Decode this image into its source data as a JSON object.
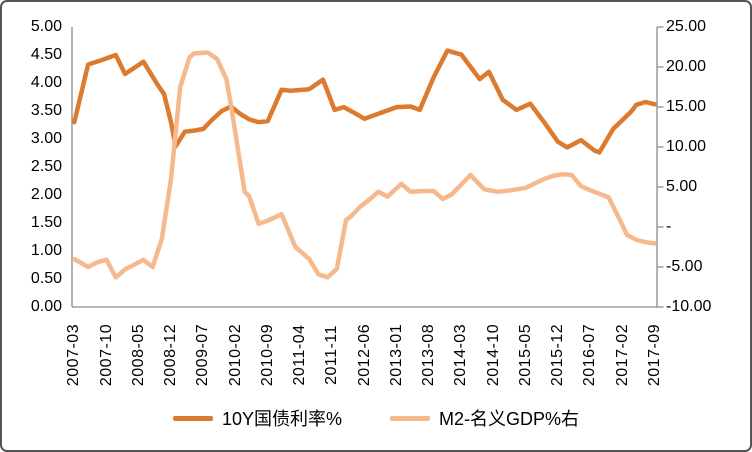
{
  "chart_data": {
    "type": "line",
    "title": "",
    "grid": false,
    "legend_position": "bottom",
    "x_axis": {
      "unit": "year-month",
      "start": "2007-03",
      "end": "2017-09",
      "label_every_n_months": 7,
      "categories": [
        "2007-03",
        "2007-10",
        "2008-05",
        "2008-12",
        "2009-07",
        "2010-02",
        "2010-09",
        "2011-04",
        "2011-11",
        "2012-06",
        "2013-01",
        "2013-08",
        "2014-03",
        "2014-10",
        "2015-05",
        "2015-12",
        "2016-07",
        "2017-02",
        "2017-09"
      ]
    },
    "left_axis": {
      "min": 0,
      "max": 5,
      "ticks": [
        {
          "label": "5.00",
          "value": 5
        },
        {
          "label": "4.50",
          "value": 4.5
        },
        {
          "label": "4.00",
          "value": 4
        },
        {
          "label": "3.50",
          "value": 3.5
        },
        {
          "label": "3.00",
          "value": 3
        },
        {
          "label": "2.50",
          "value": 2.5
        },
        {
          "label": "2.00",
          "value": 2
        },
        {
          "label": "1.50",
          "value": 1.5
        },
        {
          "label": "1.00",
          "value": 1
        },
        {
          "label": "0.50",
          "value": 0.5
        },
        {
          "label": "0.00",
          "value": 0
        }
      ]
    },
    "right_axis": {
      "min": -10,
      "max": 25,
      "ticks": [
        {
          "label": "25.00",
          "value": 25
        },
        {
          "label": "20.00",
          "value": 20
        },
        {
          "label": "15.00",
          "value": 15
        },
        {
          "label": "10.00",
          "value": 10
        },
        {
          "label": "5.00",
          "value": 5
        },
        {
          "label": "-",
          "value": 0
        },
        {
          "label": "-5.00",
          "value": -5
        },
        {
          "label": "-10.00",
          "value": -10
        }
      ]
    },
    "series": [
      {
        "name": "10Y国债利率%",
        "axis": "left",
        "color": "#DC7B30",
        "points_month_value": [
          [
            0,
            3.3
          ],
          [
            3,
            4.33
          ],
          [
            6,
            4.41
          ],
          [
            9,
            4.5
          ],
          [
            11,
            4.16
          ],
          [
            15,
            4.38
          ],
          [
            18,
            3.98
          ],
          [
            19.5,
            3.8
          ],
          [
            21,
            3.3
          ],
          [
            22,
            2.87
          ],
          [
            23,
            3.0
          ],
          [
            24,
            3.13
          ],
          [
            26,
            3.15
          ],
          [
            28,
            3.18
          ],
          [
            30,
            3.35
          ],
          [
            32,
            3.5
          ],
          [
            34,
            3.58
          ],
          [
            36,
            3.45
          ],
          [
            38,
            3.35
          ],
          [
            40,
            3.3
          ],
          [
            42,
            3.32
          ],
          [
            45,
            3.88
          ],
          [
            47,
            3.86
          ],
          [
            51,
            3.89
          ],
          [
            54,
            4.06
          ],
          [
            56.5,
            3.52
          ],
          [
            58.5,
            3.57
          ],
          [
            60.5,
            3.48
          ],
          [
            63,
            3.36
          ],
          [
            66,
            3.45
          ],
          [
            70,
            3.57
          ],
          [
            73,
            3.58
          ],
          [
            75,
            3.52
          ],
          [
            78,
            4.1
          ],
          [
            81,
            4.58
          ],
          [
            83,
            4.53
          ],
          [
            84,
            4.51
          ],
          [
            88,
            4.07
          ],
          [
            90,
            4.2
          ],
          [
            93,
            3.7
          ],
          [
            96,
            3.52
          ],
          [
            99,
            3.63
          ],
          [
            102,
            3.3
          ],
          [
            105,
            2.95
          ],
          [
            107,
            2.85
          ],
          [
            110,
            2.98
          ],
          [
            113,
            2.79
          ],
          [
            114,
            2.76
          ],
          [
            117,
            3.18
          ],
          [
            119,
            3.34
          ],
          [
            121,
            3.5
          ],
          [
            122,
            3.61
          ],
          [
            124,
            3.66
          ],
          [
            126,
            3.62
          ]
        ]
      },
      {
        "name": "M2-名义GDP%右",
        "axis": "right",
        "color": "#F6B98E",
        "points_month_value": [
          [
            0,
            -4.0
          ],
          [
            3,
            -5.0
          ],
          [
            5,
            -4.4
          ],
          [
            7,
            -4.1
          ],
          [
            9,
            -6.3
          ],
          [
            11,
            -5.3
          ],
          [
            14,
            -4.4
          ],
          [
            15,
            -4.1
          ],
          [
            17,
            -5.0
          ],
          [
            19,
            -1.5
          ],
          [
            21,
            6.0
          ],
          [
            23,
            17.5
          ],
          [
            25,
            21.2
          ],
          [
            26,
            21.7
          ],
          [
            29,
            21.8
          ],
          [
            31,
            21.0
          ],
          [
            33,
            18.5
          ],
          [
            34,
            15.3
          ],
          [
            36,
            8.0
          ],
          [
            37,
            4.4
          ],
          [
            38,
            3.8
          ],
          [
            40,
            0.4
          ],
          [
            42,
            0.8
          ],
          [
            45,
            1.6
          ],
          [
            48,
            -2.5
          ],
          [
            50,
            -3.5
          ],
          [
            51,
            -4.0
          ],
          [
            53,
            -5.9
          ],
          [
            55,
            -6.3
          ],
          [
            57,
            -5.2
          ],
          [
            59,
            0.9
          ],
          [
            60,
            1.3
          ],
          [
            62,
            2.5
          ],
          [
            64,
            3.4
          ],
          [
            66,
            4.4
          ],
          [
            68,
            3.8
          ],
          [
            71,
            5.4
          ],
          [
            73,
            4.4
          ],
          [
            76,
            4.5
          ],
          [
            78,
            4.5
          ],
          [
            80,
            3.5
          ],
          [
            82,
            4.1
          ],
          [
            86,
            6.5
          ],
          [
            89,
            4.7
          ],
          [
            92,
            4.4
          ],
          [
            95,
            4.6
          ],
          [
            98,
            4.9
          ],
          [
            102,
            6.0
          ],
          [
            104,
            6.4
          ],
          [
            106,
            6.6
          ],
          [
            108,
            6.5
          ],
          [
            110,
            5.1
          ],
          [
            112,
            4.6
          ],
          [
            116,
            3.7
          ],
          [
            118,
            1.4
          ],
          [
            120,
            -1.0
          ],
          [
            122,
            -1.6
          ],
          [
            124,
            -1.9
          ],
          [
            126,
            -2.05
          ]
        ]
      }
    ],
    "style": {
      "axis_line_color": "#8C8C8C",
      "text_color": "#000000",
      "background": "#FFFFFF",
      "frame_border_color": "#555555"
    }
  },
  "legend": {
    "items": [
      {
        "label": "10Y国债利率%"
      },
      {
        "label": "M2-名义GDP%右"
      }
    ]
  }
}
